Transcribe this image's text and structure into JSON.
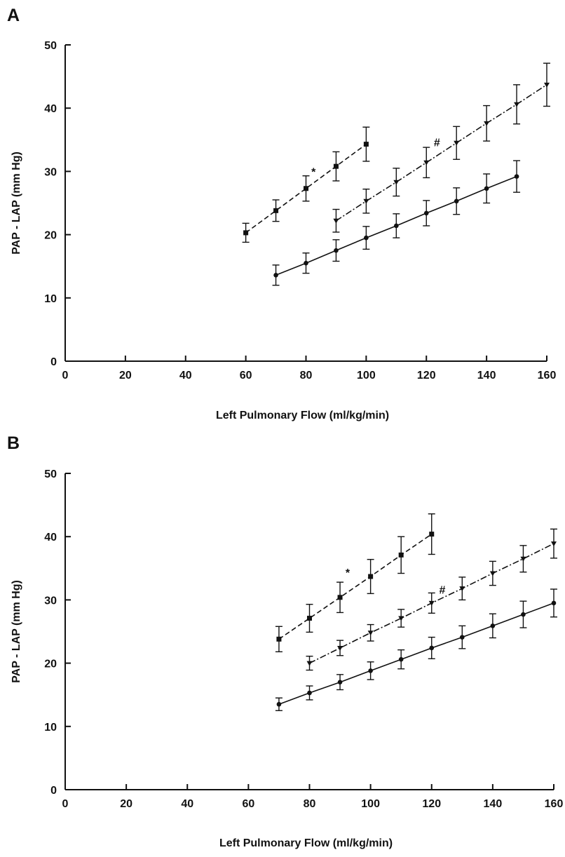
{
  "chart_data": [
    {
      "panel": "A",
      "type": "line",
      "xlabel": "Left Pulmonary Flow (ml/kg/min)",
      "ylabel": "PAP - LAP (mm Hg)",
      "xlim": [
        0,
        160
      ],
      "ylim": [
        0,
        50
      ],
      "xticks": [
        0,
        20,
        40,
        60,
        80,
        100,
        120,
        140,
        160
      ],
      "yticks": [
        0,
        10,
        20,
        30,
        40,
        50
      ],
      "grid": false,
      "series": [
        {
          "marker": "square",
          "line_style": "dashed",
          "x": [
            60,
            70,
            80,
            90,
            100
          ],
          "y": [
            20.3,
            23.8,
            27.3,
            30.8,
            34.3
          ],
          "err": [
            1.5,
            1.7,
            2.0,
            2.3,
            2.7
          ]
        },
        {
          "marker": "triangle-down",
          "line_style": "dash-dot",
          "x": [
            90,
            100,
            110,
            120,
            130,
            140,
            150,
            160
          ],
          "y": [
            22.2,
            25.3,
            28.3,
            31.4,
            34.5,
            37.6,
            40.6,
            43.7
          ],
          "err": [
            1.8,
            1.9,
            2.2,
            2.4,
            2.6,
            2.8,
            3.1,
            3.4
          ]
        },
        {
          "marker": "circle",
          "line_style": "solid",
          "x": [
            70,
            80,
            90,
            100,
            110,
            120,
            130,
            140,
            150
          ],
          "y": [
            13.6,
            15.5,
            17.5,
            19.5,
            21.4,
            23.4,
            25.3,
            27.3,
            29.2
          ],
          "err": [
            1.6,
            1.6,
            1.7,
            1.8,
            1.9,
            2.0,
            2.1,
            2.3,
            2.5
          ]
        }
      ],
      "annotations": [
        {
          "text": "*",
          "x": 82.5,
          "y": 29.3
        },
        {
          "text": "#",
          "x": 123.5,
          "y": 34.0
        }
      ]
    },
    {
      "panel": "B",
      "type": "line",
      "xlabel": "Left Pulmonary Flow (ml/kg/min)",
      "ylabel": "PAP - LAP (mm Hg)",
      "xlim": [
        0,
        160
      ],
      "ylim": [
        0,
        50
      ],
      "xticks": [
        0,
        20,
        40,
        60,
        80,
        100,
        120,
        140,
        160
      ],
      "yticks": [
        0,
        10,
        20,
        30,
        40,
        50
      ],
      "grid": false,
      "series": [
        {
          "marker": "square",
          "line_style": "dashed",
          "x": [
            70,
            80,
            90,
            100,
            110,
            120
          ],
          "y": [
            23.8,
            27.1,
            30.4,
            33.7,
            37.1,
            40.4
          ],
          "err": [
            2.0,
            2.2,
            2.4,
            2.7,
            2.9,
            3.2
          ]
        },
        {
          "marker": "triangle-down",
          "line_style": "dash-dot",
          "x": [
            80,
            90,
            100,
            110,
            120,
            130,
            140,
            150,
            160
          ],
          "y": [
            20.0,
            22.4,
            24.8,
            27.1,
            29.5,
            31.8,
            34.2,
            36.5,
            38.9
          ],
          "err": [
            1.1,
            1.2,
            1.3,
            1.4,
            1.6,
            1.8,
            1.9,
            2.1,
            2.3
          ]
        },
        {
          "marker": "circle",
          "line_style": "solid",
          "x": [
            70,
            80,
            90,
            100,
            110,
            120,
            130,
            140,
            150,
            160
          ],
          "y": [
            13.5,
            15.3,
            17.0,
            18.8,
            20.6,
            22.4,
            24.1,
            25.9,
            27.7,
            29.5
          ],
          "err": [
            1.0,
            1.1,
            1.2,
            1.4,
            1.5,
            1.7,
            1.8,
            1.9,
            2.1,
            2.2
          ]
        }
      ],
      "annotations": [
        {
          "text": "*",
          "x": 92.5,
          "y": 33.7
        },
        {
          "text": "#",
          "x": 123.5,
          "y": 31.0
        }
      ]
    }
  ]
}
